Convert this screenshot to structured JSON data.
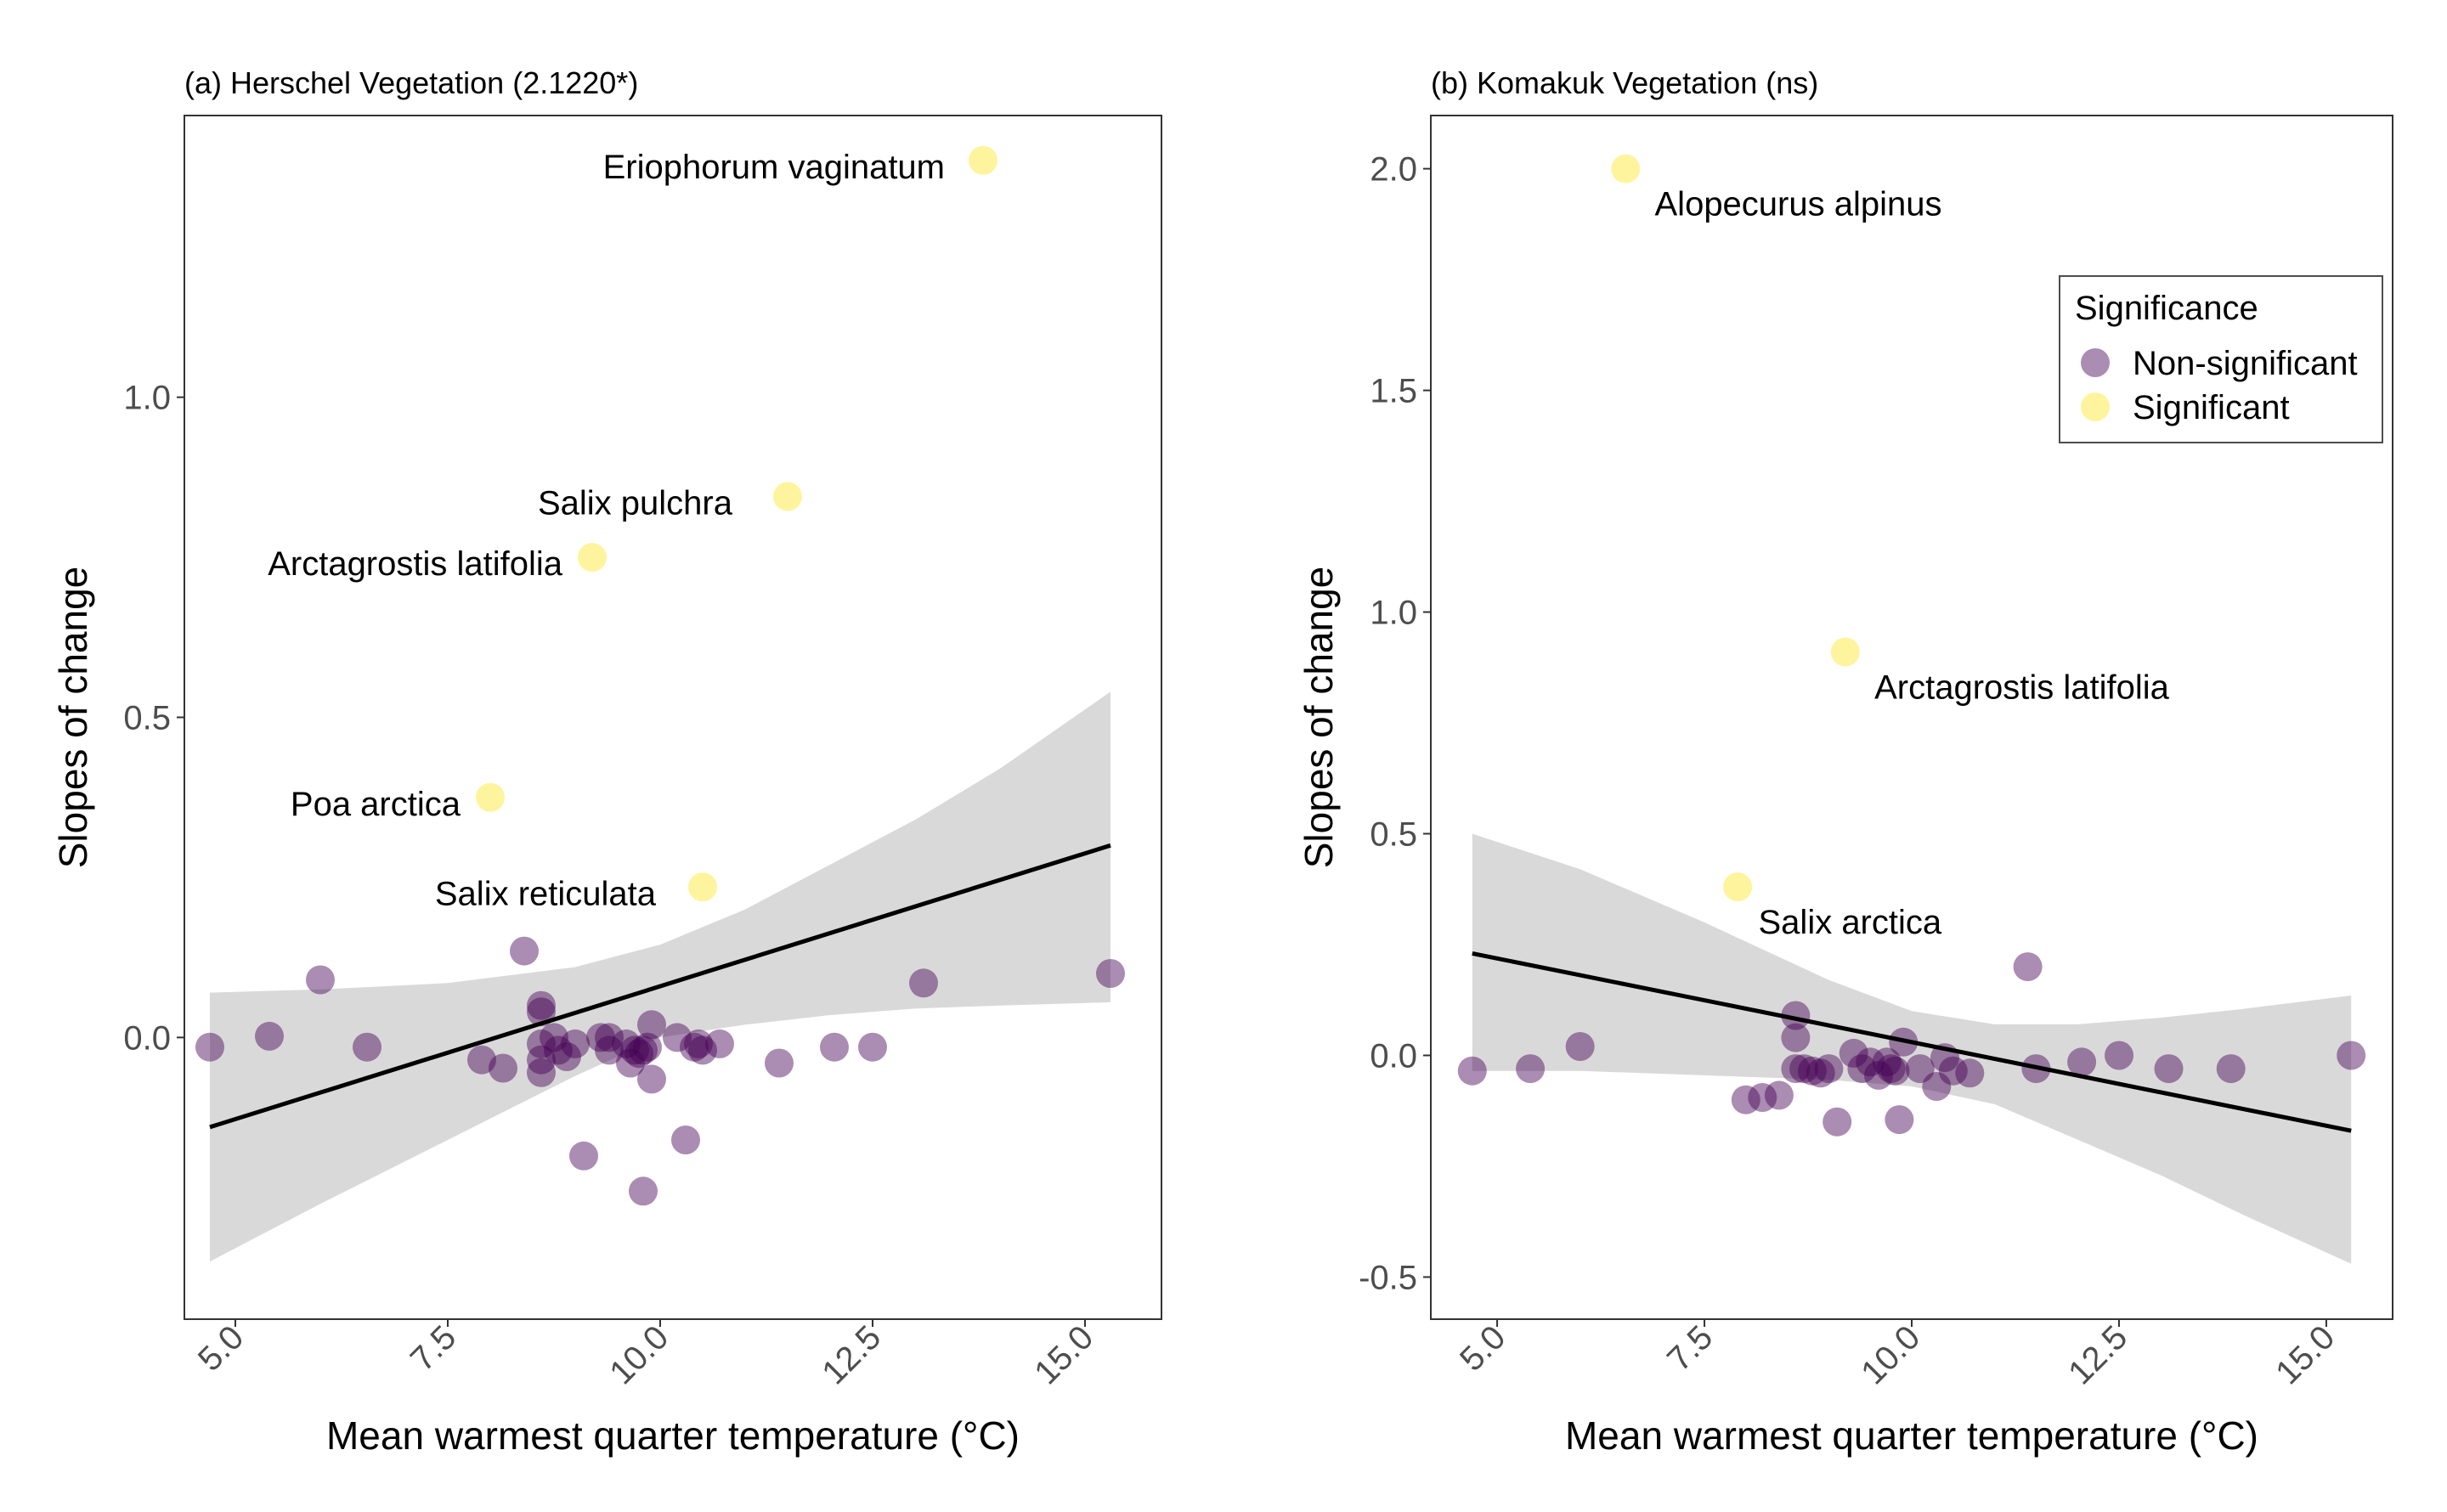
{
  "colors": {
    "non_significant": "#440154",
    "significant": "#FDE725",
    "ci_band": "#D9D9D9",
    "fit_line": "#000000",
    "tick_text": "#4D4D4D"
  },
  "legend": {
    "title": "Significance",
    "items": [
      {
        "label": "Non-significant",
        "key": "non_significant"
      },
      {
        "label": "Significant",
        "key": "significant"
      }
    ],
    "placement": "top-right of panel (b)"
  },
  "chart_data": [
    {
      "type": "scatter",
      "title": "(a) Herschel Vegetation (2.1220*)",
      "xlabel": "Mean warmest quarter temperature (°C)",
      "ylabel": "Slopes of change",
      "xlim": [
        4.4,
        15.9
      ],
      "ylim": [
        -0.44,
        1.44
      ],
      "xticks": [
        5.0,
        7.5,
        10.0,
        12.5,
        15.0
      ],
      "xtick_labels": [
        "5.0",
        "7.5",
        "10.0",
        "12.5",
        "15.0"
      ],
      "yticks": [
        0.0,
        0.5,
        1.0
      ],
      "ytick_labels": [
        "0.0",
        "0.5",
        "1.0"
      ],
      "grid": false,
      "fit": {
        "x": [
          4.7,
          15.3
        ],
        "y": [
          -0.14,
          0.3
        ],
        "ci_upper": [
          [
            4.7,
            0.07
          ],
          [
            6.0,
            0.075
          ],
          [
            7.5,
            0.085
          ],
          [
            9.0,
            0.11
          ],
          [
            10.0,
            0.145
          ],
          [
            11.0,
            0.2
          ],
          [
            12.0,
            0.27
          ],
          [
            13.0,
            0.34
          ],
          [
            14.0,
            0.42
          ],
          [
            15.3,
            0.54
          ]
        ],
        "ci_lower": [
          [
            4.7,
            -0.35
          ],
          [
            6.0,
            -0.26
          ],
          [
            7.5,
            -0.16
          ],
          [
            9.0,
            -0.06
          ],
          [
            10.0,
            0.0
          ],
          [
            11.0,
            0.02
          ],
          [
            12.0,
            0.035
          ],
          [
            13.0,
            0.045
          ],
          [
            14.0,
            0.05
          ],
          [
            15.3,
            0.055
          ]
        ]
      },
      "series": [
        {
          "name": "Non-significant",
          "color_key": "non_significant",
          "x": [
            4.7,
            5.4,
            6.0,
            6.55,
            7.9,
            8.15,
            8.4,
            8.6,
            8.6,
            8.6,
            8.6,
            8.6,
            8.75,
            8.8,
            8.9,
            9.0,
            9.1,
            9.3,
            9.4,
            9.4,
            9.6,
            9.65,
            9.7,
            9.75,
            9.8,
            9.8,
            9.85,
            9.9,
            9.9,
            10.2,
            10.3,
            10.4,
            10.45,
            10.5,
            10.7,
            11.4,
            12.05,
            12.5,
            13.1,
            15.3
          ],
          "y": [
            -0.015,
            0.002,
            0.09,
            -0.015,
            -0.035,
            -0.048,
            0.135,
            0.05,
            0.04,
            -0.01,
            -0.035,
            -0.055,
            0.0,
            -0.02,
            -0.03,
            -0.01,
            -0.185,
            0.0,
            0.0,
            -0.02,
            -0.01,
            -0.04,
            -0.02,
            -0.025,
            -0.24,
            -0.02,
            -0.015,
            0.02,
            -0.065,
            0.0,
            -0.16,
            -0.015,
            -0.01,
            -0.02,
            -0.01,
            -0.04,
            -0.015,
            -0.015,
            0.085,
            0.1
          ]
        },
        {
          "name": "Significant",
          "color_key": "significant",
          "x": [
            13.8,
            11.5,
            9.2,
            8.0,
            10.5
          ],
          "y": [
            1.37,
            0.845,
            0.75,
            0.375,
            0.235
          ]
        }
      ],
      "annotations": [
        {
          "text": "Eriophorum vaginatum",
          "x": 13.8,
          "y": 1.37,
          "anchor": "end",
          "dx": -0.45,
          "dy": -0.028
        },
        {
          "text": "Salix pulchra",
          "x": 11.5,
          "y": 0.845,
          "anchor": "end",
          "dx": -0.65,
          "dy": -0.028
        },
        {
          "text": "Arctagrostis latifolia",
          "x": 9.2,
          "y": 0.75,
          "anchor": "end",
          "dx": -0.35,
          "dy": -0.028
        },
        {
          "text": "Poa arctica",
          "x": 8.0,
          "y": 0.375,
          "anchor": "end",
          "dx": -0.35,
          "dy": -0.028
        },
        {
          "text": "Salix reticulata",
          "x": 10.5,
          "y": 0.235,
          "anchor": "end",
          "dx": -0.55,
          "dy": -0.028
        }
      ]
    },
    {
      "type": "scatter",
      "title": "(b) Komakuk Vegetation (ns)",
      "xlabel": "Mean warmest quarter temperature (°C)",
      "ylabel": "Slopes of change",
      "xlim": [
        4.2,
        15.8
      ],
      "ylim": [
        -0.595,
        2.12
      ],
      "xticks": [
        5.0,
        7.5,
        10.0,
        12.5,
        15.0
      ],
      "xtick_labels": [
        "5.0",
        "7.5",
        "10.0",
        "12.5",
        "15.0"
      ],
      "yticks": [
        -0.5,
        0.0,
        0.5,
        1.0,
        1.5,
        2.0
      ],
      "ytick_labels": [
        "-0.5",
        "0.0",
        "0.5",
        "1.0",
        "1.5",
        "2.0"
      ],
      "grid": false,
      "fit": {
        "x": [
          4.7,
          15.3
        ],
        "y": [
          0.23,
          -0.17
        ],
        "ci_upper": [
          [
            4.7,
            0.5
          ],
          [
            6.0,
            0.42
          ],
          [
            7.5,
            0.3
          ],
          [
            9.0,
            0.17
          ],
          [
            10.0,
            0.1
          ],
          [
            11.0,
            0.07
          ],
          [
            12.0,
            0.07
          ],
          [
            13.0,
            0.085
          ],
          [
            14.0,
            0.105
          ],
          [
            15.3,
            0.135
          ]
        ],
        "ci_lower": [
          [
            4.7,
            -0.035
          ],
          [
            6.0,
            -0.035
          ],
          [
            7.5,
            -0.045
          ],
          [
            9.0,
            -0.055
          ],
          [
            10.0,
            -0.07
          ],
          [
            11.0,
            -0.11
          ],
          [
            12.0,
            -0.19
          ],
          [
            13.0,
            -0.27
          ],
          [
            14.0,
            -0.36
          ],
          [
            15.3,
            -0.47
          ]
        ]
      },
      "series": [
        {
          "name": "Non-significant",
          "color_key": "non_significant",
          "x": [
            4.7,
            5.4,
            6.0,
            8.0,
            8.2,
            8.4,
            8.6,
            8.6,
            8.6,
            8.7,
            8.8,
            8.9,
            9.0,
            9.1,
            9.3,
            9.4,
            9.5,
            9.6,
            9.7,
            9.75,
            9.8,
            9.85,
            9.9,
            10.1,
            10.3,
            10.4,
            10.5,
            10.7,
            11.4,
            11.5,
            12.05,
            12.5,
            13.1,
            13.85,
            15.3
          ],
          "y": [
            -0.035,
            -0.03,
            0.02,
            -0.1,
            -0.095,
            -0.09,
            0.09,
            0.04,
            -0.03,
            -0.03,
            -0.035,
            -0.04,
            -0.03,
            -0.15,
            0.005,
            -0.03,
            -0.015,
            -0.045,
            -0.015,
            -0.03,
            -0.035,
            -0.145,
            0.03,
            -0.03,
            -0.07,
            -0.005,
            -0.035,
            -0.04,
            0.2,
            -0.03,
            -0.015,
            0.0,
            -0.03,
            -0.03,
            0.0
          ]
        },
        {
          "name": "Significant",
          "color_key": "significant",
          "x": [
            6.55,
            9.2,
            7.9
          ],
          "y": [
            2.0,
            0.91,
            0.38
          ]
        }
      ],
      "annotations": [
        {
          "text": "Alopecurus alpinus",
          "x": 6.55,
          "y": 2.0,
          "anchor": "start",
          "dx": 0.35,
          "dy": -0.105
        },
        {
          "text": "Arctagrostis latifolia",
          "x": 9.2,
          "y": 0.91,
          "anchor": "start",
          "dx": 0.35,
          "dy": -0.105
        },
        {
          "text": "Salix arctica",
          "x": 7.9,
          "y": 0.38,
          "anchor": "start",
          "dx": 0.25,
          "dy": -0.105
        }
      ]
    }
  ]
}
